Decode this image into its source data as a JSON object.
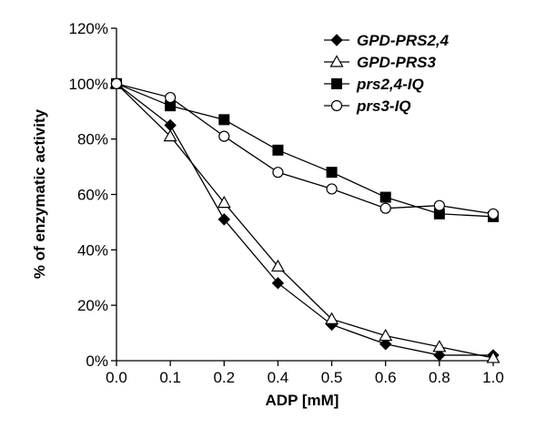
{
  "chart_data": {
    "type": "line",
    "title": "",
    "xlabel": "ADP [mM]",
    "ylabel": "% of enzymatic activity",
    "x_categories": [
      "0.0",
      "0.1",
      "0.2",
      "0.4",
      "0.5",
      "0.6",
      "0.8",
      "1.0"
    ],
    "yticks": [
      "0%",
      "20%",
      "40%",
      "60%",
      "80%",
      "100%",
      "120%"
    ],
    "ylim": [
      0,
      120
    ],
    "grid": false,
    "legend_position": "top-right",
    "series": [
      {
        "name": "GPD-PRS2,4",
        "marker": "diamond",
        "fill": "#000000",
        "values": [
          100,
          85,
          51,
          28,
          13,
          6,
          2,
          2
        ]
      },
      {
        "name": "GPD-PRS3",
        "marker": "triangle",
        "fill": "#ffffff",
        "values": [
          100,
          81,
          57,
          34,
          15,
          9,
          5,
          1
        ]
      },
      {
        "name": "prs2,4-IQ",
        "marker": "square",
        "fill": "#000000",
        "values": [
          100,
          92,
          87,
          76,
          68,
          59,
          53,
          52
        ]
      },
      {
        "name": "prs3-IQ",
        "marker": "circle",
        "fill": "#ffffff",
        "values": [
          100,
          95,
          81,
          68,
          62,
          55,
          56,
          53
        ]
      }
    ]
  }
}
